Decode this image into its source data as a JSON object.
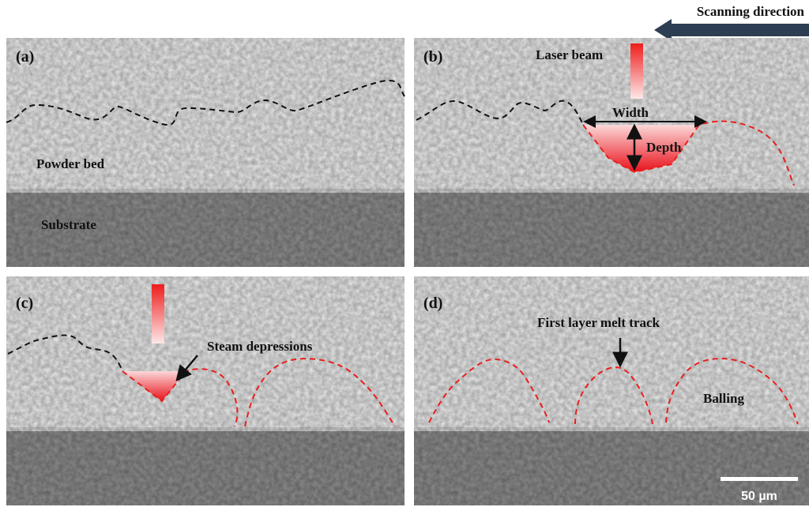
{
  "header": {
    "scanning_direction": "Scanning direction"
  },
  "panels": [
    {
      "label": "(a)",
      "annotations": [
        "Powder bed",
        "Substrate"
      ]
    },
    {
      "label": "(b)",
      "annotations": [
        "Laser beam",
        "Width",
        "Depth"
      ]
    },
    {
      "label": "(c)",
      "annotations": [
        "Steam depressions"
      ]
    },
    {
      "label": "(d)",
      "annotations": [
        "First layer melt track",
        "Balling"
      ]
    }
  ],
  "scale_bar": {
    "label": "50 µm"
  }
}
